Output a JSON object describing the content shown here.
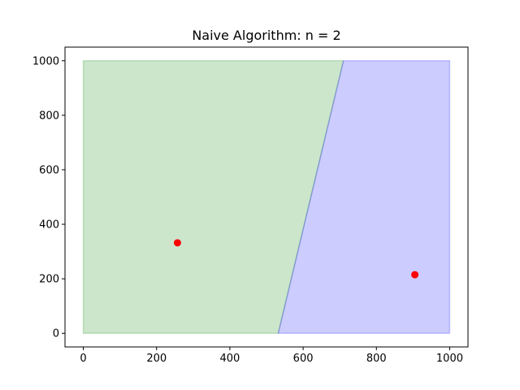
{
  "chart_data": {
    "type": "scatter",
    "title": "Naive Algorithm: n = 2",
    "xlabel": "",
    "ylabel": "",
    "xlim": [
      -50,
      1050
    ],
    "ylim": [
      -50,
      1050
    ],
    "x_ticks": [
      0,
      200,
      400,
      600,
      800,
      1000
    ],
    "y_ticks": [
      0,
      200,
      400,
      600,
      800,
      1000
    ],
    "grid": false,
    "regions": [
      {
        "color": "#008000",
        "opacity": 0.2,
        "polygon": [
          [
            0,
            0
          ],
          [
            532,
            0
          ],
          [
            710,
            1000
          ],
          [
            0,
            1000
          ]
        ]
      },
      {
        "color": "#0000ff",
        "opacity": 0.2,
        "polygon": [
          [
            532,
            0
          ],
          [
            1000,
            0
          ],
          [
            1000,
            1000
          ],
          [
            710,
            1000
          ]
        ]
      }
    ],
    "points": [
      {
        "x": 257,
        "y": 332,
        "color": "#ff0000"
      },
      {
        "x": 905,
        "y": 215,
        "color": "#ff0000"
      }
    ]
  }
}
